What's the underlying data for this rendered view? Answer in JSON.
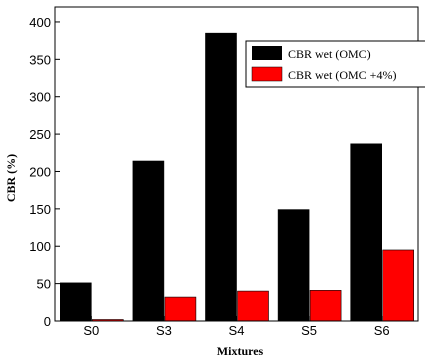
{
  "chart_data": {
    "type": "bar",
    "xlabel": "Mixtures",
    "ylabel": "CBR (%)",
    "categories": [
      "S0",
      "S3",
      "S4",
      "S5",
      "S6"
    ],
    "ylim": [
      0,
      420
    ],
    "yticks": [
      0,
      50,
      100,
      150,
      200,
      250,
      300,
      350,
      400
    ],
    "series": [
      {
        "name": "CBR wet (OMC)",
        "values": [
          51,
          214,
          385,
          149,
          237
        ],
        "color": "#000000"
      },
      {
        "name": "CBR wet (OMC +4%)",
        "values": [
          2,
          32,
          40,
          41,
          95
        ],
        "color": "#ff0000"
      }
    ],
    "legend_position": "top-right",
    "grid": false
  }
}
